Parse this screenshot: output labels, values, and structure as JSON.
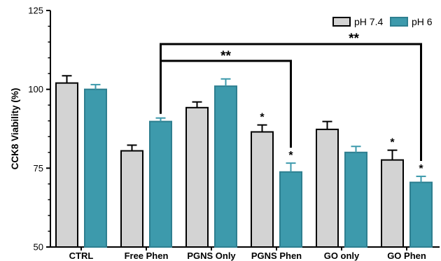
{
  "chart_data": {
    "type": "bar",
    "title": "",
    "xlabel": "",
    "ylabel": "CCK8 Viability (%)",
    "ylim": [
      50,
      125
    ],
    "yticks": [
      50,
      75,
      100,
      125
    ],
    "grid": false,
    "legend_position": "top-right",
    "categories": [
      "CTRL",
      "Free Phen",
      "PGNS Only",
      "PGNS Phen",
      "GO only",
      "GO Phen"
    ],
    "series": [
      {
        "name": "pH 7.4",
        "color": "#d3d3d3",
        "error_color": "#000000",
        "values": [
          102,
          80.5,
          94.2,
          86.5,
          87.3,
          77.6
        ],
        "errors": [
          2.3,
          1.8,
          1.8,
          2.2,
          2.5,
          3.1
        ],
        "annotations": [
          "",
          "",
          "",
          "*",
          "",
          "*"
        ]
      },
      {
        "name": "pH 6",
        "color": "#3d9aac",
        "error_color": "#3d9aac",
        "values": [
          100,
          89.8,
          101,
          73.8,
          80,
          70.5
        ],
        "errors": [
          1.5,
          1.1,
          2.3,
          2.8,
          1.9,
          1.9
        ],
        "annotations": [
          "",
          "",
          "",
          "*",
          "",
          "*"
        ]
      }
    ],
    "brackets": [
      {
        "from": "Free Phen",
        "to": "GO Phen",
        "label": "**"
      },
      {
        "from": "Free Phen",
        "to": "PGNS Phen",
        "label": "**"
      }
    ]
  }
}
